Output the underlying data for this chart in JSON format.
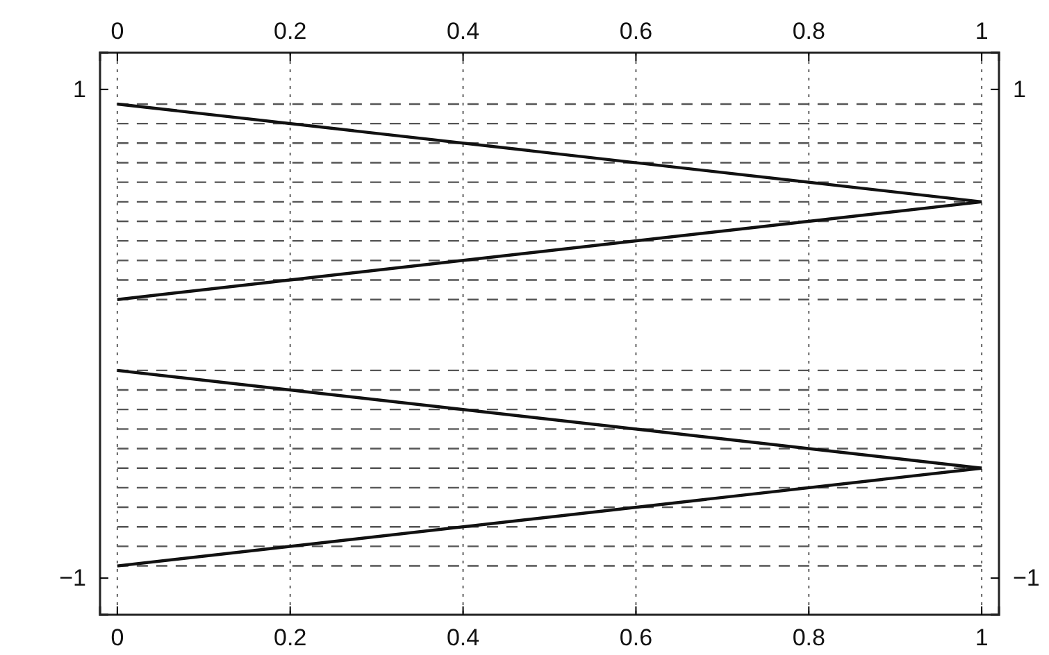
{
  "chart_data": {
    "type": "line",
    "x": [
      0,
      1
    ],
    "series": [
      {
        "color": "#111111",
        "values": [
          0.94,
          0.54
        ]
      },
      {
        "color": "#111111",
        "values": [
          0.14,
          0.54
        ]
      },
      {
        "color": "#111111",
        "values": [
          -0.15,
          -0.55
        ]
      },
      {
        "color": "#111111",
        "values": [
          -0.95,
          -0.55
        ]
      }
    ],
    "xlim": [
      -0.02,
      1.02
    ],
    "xticks": [
      0,
      0.2,
      0.4,
      0.6,
      0.8,
      1
    ],
    "x2lim": [
      -0.02,
      1.02
    ],
    "x2ticks": [
      0,
      0.2,
      0.4,
      0.6,
      0.8,
      1
    ],
    "ylim": [
      -1.15,
      1.15
    ],
    "yticks": [
      {
        "value": 1,
        "label": "1"
      },
      {
        "value": -1,
        "label": "−1"
      }
    ],
    "y2lim": [
      -1.15,
      1.15
    ],
    "y2ticks": [
      {
        "value": 1,
        "label": "1"
      },
      {
        "value": -1,
        "label": "−1"
      }
    ],
    "grid": "x",
    "line_style": "solid",
    "marker": "none",
    "ref_lines": [
      {
        "axis": "y",
        "value": 0.94,
        "line_style": "dashed",
        "color": "#555555"
      },
      {
        "axis": "y",
        "value": 0.86,
        "line_style": "dashed",
        "color": "#555555"
      },
      {
        "axis": "y",
        "value": 0.78,
        "line_style": "dashed",
        "color": "#555555"
      },
      {
        "axis": "y",
        "value": 0.7,
        "line_style": "dashed",
        "color": "#555555"
      },
      {
        "axis": "y",
        "value": 0.62,
        "line_style": "dashed",
        "color": "#555555"
      },
      {
        "axis": "y",
        "value": 0.54,
        "line_style": "dashed",
        "color": "#555555"
      },
      {
        "axis": "y",
        "value": 0.46,
        "line_style": "dashed",
        "color": "#555555"
      },
      {
        "axis": "y",
        "value": 0.38,
        "line_style": "dashed",
        "color": "#555555"
      },
      {
        "axis": "y",
        "value": 0.3,
        "line_style": "dashed",
        "color": "#555555"
      },
      {
        "axis": "y",
        "value": 0.22,
        "line_style": "dashed",
        "color": "#555555"
      },
      {
        "axis": "y",
        "value": 0.14,
        "line_style": "dashed",
        "color": "#555555"
      },
      {
        "axis": "y",
        "value": -0.15,
        "line_style": "dashed",
        "color": "#555555"
      },
      {
        "axis": "y",
        "value": -0.23,
        "line_style": "dashed",
        "color": "#555555"
      },
      {
        "axis": "y",
        "value": -0.31,
        "line_style": "dashed",
        "color": "#555555"
      },
      {
        "axis": "y",
        "value": -0.39,
        "line_style": "dashed",
        "color": "#555555"
      },
      {
        "axis": "y",
        "value": -0.47,
        "line_style": "dashed",
        "color": "#555555"
      },
      {
        "axis": "y",
        "value": -0.55,
        "line_style": "dashed",
        "color": "#555555"
      },
      {
        "axis": "y",
        "value": -0.63,
        "line_style": "dashed",
        "color": "#555555"
      },
      {
        "axis": "y",
        "value": -0.71,
        "line_style": "dashed",
        "color": "#555555"
      },
      {
        "axis": "y",
        "value": -0.79,
        "line_style": "dashed",
        "color": "#555555"
      },
      {
        "axis": "y",
        "value": -0.87,
        "line_style": "dashed",
        "color": "#555555"
      },
      {
        "axis": "y",
        "value": -0.95,
        "line_style": "dashed",
        "color": "#555555"
      }
    ]
  }
}
